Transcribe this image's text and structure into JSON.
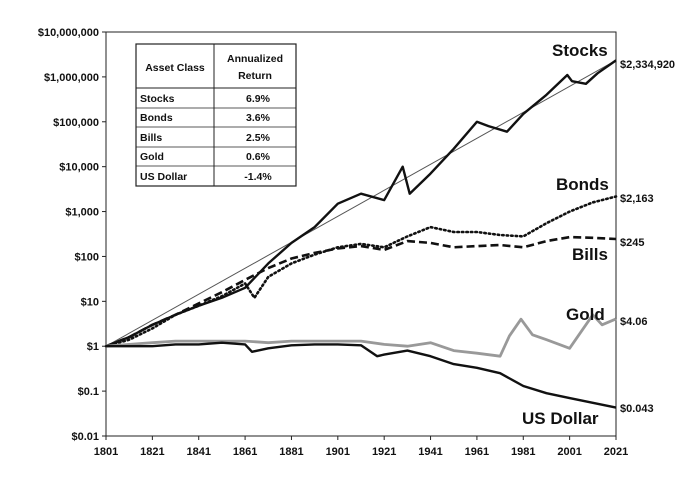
{
  "chart_data": {
    "type": "line",
    "y_scale": "log",
    "ylim": [
      0.01,
      10000000
    ],
    "xlim": [
      1801,
      2021
    ],
    "x_ticks": [
      "1801",
      "1821",
      "1841",
      "1861",
      "1881",
      "1901",
      "1921",
      "1941",
      "1961",
      "1981",
      "2001",
      "2021"
    ],
    "y_ticks": [
      {
        "value": 10000000,
        "label": "$10,000,000"
      },
      {
        "value": 1000000,
        "label": "$1,000,000"
      },
      {
        "value": 100000,
        "label": "$100,000"
      },
      {
        "value": 10000,
        "label": "$10,000"
      },
      {
        "value": 1000,
        "label": "$1,000"
      },
      {
        "value": 100,
        "label": "$100"
      },
      {
        "value": 10,
        "label": "$10"
      },
      {
        "value": 1,
        "label": "$1"
      },
      {
        "value": 0.1,
        "label": "$0.1"
      },
      {
        "value": 0.01,
        "label": "$0.01"
      }
    ],
    "grid": false,
    "series": [
      {
        "name": "Stocks",
        "end_label": "$2,334,920",
        "color": "#111111",
        "style": "solid",
        "x": [
          1801,
          1811,
          1821,
          1831,
          1841,
          1851,
          1861,
          1871,
          1881,
          1891,
          1901,
          1911,
          1921,
          1929,
          1932,
          1941,
          1951,
          1961,
          1966,
          1974,
          1981,
          1991,
          2000,
          2002,
          2008,
          2013,
          2021
        ],
        "y": [
          1,
          1.6,
          3,
          5,
          8,
          12,
          20,
          70,
          200,
          450,
          1500,
          2500,
          1800,
          10000,
          2500,
          7000,
          25000,
          100000,
          80000,
          60000,
          150000,
          400000,
          1100000,
          800000,
          700000,
          1200000,
          2334920
        ]
      },
      {
        "name": "Bonds",
        "end_label": "$2,163",
        "color": "#111111",
        "style": "dotted",
        "x": [
          1801,
          1811,
          1821,
          1831,
          1841,
          1851,
          1861,
          1865,
          1871,
          1881,
          1891,
          1901,
          1911,
          1921,
          1931,
          1941,
          1951,
          1961,
          1971,
          1981,
          1991,
          2001,
          2011,
          2021
        ],
        "y": [
          1,
          1.4,
          2.5,
          5,
          8,
          13,
          25,
          12,
          35,
          70,
          110,
          160,
          190,
          160,
          280,
          450,
          350,
          350,
          300,
          280,
          550,
          1000,
          1600,
          2163
        ]
      },
      {
        "name": "Bills",
        "end_label": "$245",
        "color": "#111111",
        "style": "dashed",
        "x": [
          1801,
          1811,
          1821,
          1831,
          1841,
          1851,
          1861,
          1871,
          1881,
          1891,
          1901,
          1911,
          1921,
          1931,
          1941,
          1951,
          1961,
          1971,
          1981,
          1991,
          2001,
          2011,
          2021
        ],
        "y": [
          1,
          1.6,
          3,
          5,
          9,
          16,
          30,
          55,
          90,
          120,
          150,
          170,
          140,
          220,
          200,
          160,
          170,
          180,
          160,
          220,
          270,
          260,
          245
        ]
      },
      {
        "name": "Gold",
        "end_label": "$4.06",
        "color": "#999999",
        "style": "solid",
        "x": [
          1801,
          1811,
          1821,
          1831,
          1841,
          1851,
          1861,
          1871,
          1881,
          1891,
          1901,
          1911,
          1921,
          1931,
          1941,
          1951,
          1961,
          1971,
          1975,
          1980,
          1985,
          1991,
          2001,
          2011,
          2015,
          2021
        ],
        "y": [
          1,
          1.1,
          1.2,
          1.3,
          1.3,
          1.3,
          1.3,
          1.2,
          1.3,
          1.3,
          1.3,
          1.3,
          1.1,
          1.0,
          1.2,
          0.8,
          0.7,
          0.6,
          1.7,
          4.0,
          1.8,
          1.4,
          0.9,
          5.0,
          3.0,
          4.06
        ]
      },
      {
        "name": "US Dollar",
        "end_label": "$0.043",
        "color": "#111111",
        "style": "solid",
        "x": [
          1801,
          1811,
          1821,
          1831,
          1841,
          1851,
          1861,
          1864,
          1871,
          1881,
          1891,
          1901,
          1911,
          1918,
          1921,
          1931,
          1941,
          1951,
          1961,
          1971,
          1981,
          1991,
          2001,
          2011,
          2021
        ],
        "y": [
          1,
          1.0,
          1.0,
          1.1,
          1.1,
          1.2,
          1.1,
          0.75,
          0.9,
          1.05,
          1.1,
          1.1,
          1.05,
          0.6,
          0.65,
          0.8,
          0.6,
          0.4,
          0.33,
          0.25,
          0.13,
          0.09,
          0.07,
          0.055,
          0.043
        ]
      }
    ],
    "trend_line": {
      "from": {
        "x": 1801,
        "y": 1
      },
      "to": {
        "x": 2021,
        "y": 2334920
      },
      "color": "#555555"
    },
    "table": {
      "headers": [
        "Asset Class",
        "Annualized",
        "Return"
      ],
      "rows": [
        {
          "asset": "Stocks",
          "return": "6.9%"
        },
        {
          "asset": "Bonds",
          "return": "3.6%"
        },
        {
          "asset": "Bills",
          "return": "2.5%"
        },
        {
          "asset": "Gold",
          "return": "0.6%"
        },
        {
          "asset": "US Dollar",
          "return": "-1.4%"
        }
      ]
    }
  }
}
